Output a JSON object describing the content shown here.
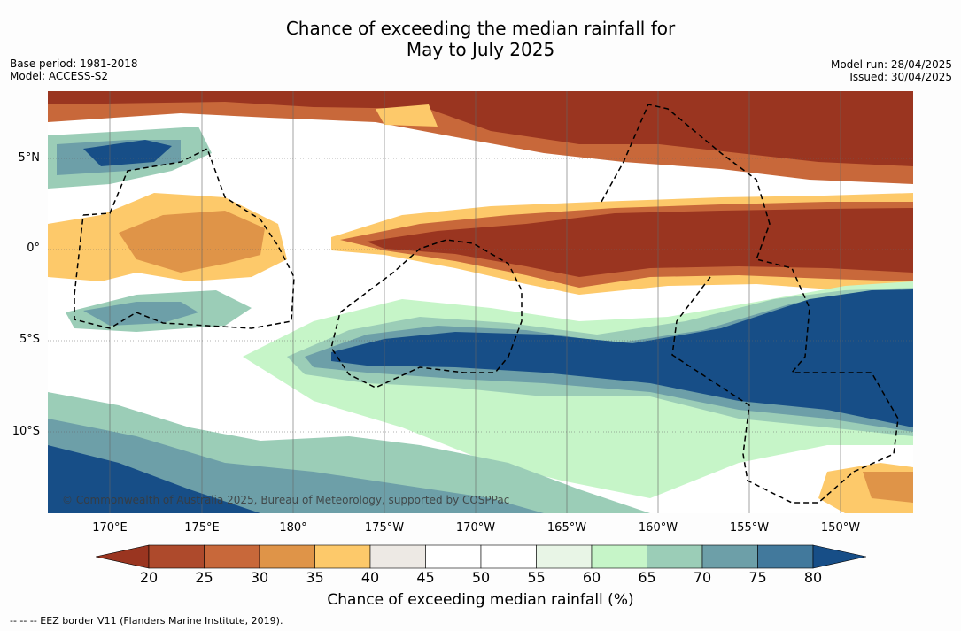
{
  "title_line1": "Chance of exceeding the median rainfall for",
  "title_line2": "May to July 2025",
  "meta_left": {
    "base_period": "Base period: 1981-2018",
    "model": "Model: ACCESS-S2"
  },
  "meta_right": {
    "model_run": "Model run: 28/04/2025",
    "issued": "Issued: 30/04/2025"
  },
  "lat_labels": [
    "5°N",
    "0°",
    "5°S",
    "10°S"
  ],
  "lon_labels": [
    "170°E",
    "175°E",
    "180°",
    "175°W",
    "170°W",
    "165°W",
    "160°W",
    "155°W",
    "150°W"
  ],
  "copyright": "© Commonwealth of Australia 2025, Bureau of Meteorology, supported by COSPPac",
  "colorbar": {
    "ticks": [
      "20",
      "25",
      "30",
      "35",
      "40",
      "45",
      "50",
      "55",
      "60",
      "65",
      "70",
      "75",
      "80"
    ],
    "colors": [
      "#9a3520",
      "#ae4a2c",
      "#c8683a",
      "#df9448",
      "#fdc96a",
      "#ede9e4",
      "#ffffff",
      "#ffffff",
      "#e8f5e6",
      "#c6f5c8",
      "#9bcdb7",
      "#6d9fa8",
      "#42799c",
      "#174e87"
    ],
    "label": "Chance of exceeding median rainfall (%)"
  },
  "footnote": "--  --  -- EEZ border V11 (Flanders Marine Institute, 2019)."
}
